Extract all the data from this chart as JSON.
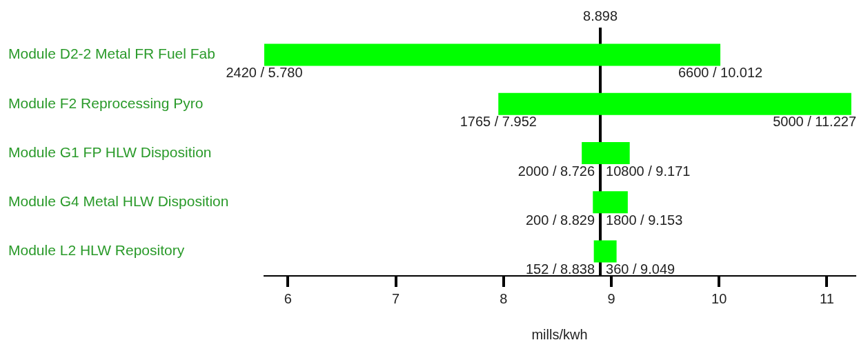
{
  "chart_data": {
    "type": "bar",
    "orientation": "horizontal",
    "xlabel": "mills/kwh",
    "categories": [
      "Module D2-2 Metal FR Fuel Fab",
      "Module F2 Reprocessing Pyro",
      "Module G1 FP HLW Disposition",
      "Module G4 Metal HLW Disposition",
      "Module L2 HLW Repository"
    ],
    "base": [
      5.78,
      7.952,
      8.726,
      8.829,
      8.838
    ],
    "values": [
      4.232,
      3.275,
      0.445,
      0.324,
      0.211
    ],
    "color": "#00ff00",
    "xlim": [
      5.78,
      11.26
    ],
    "xticks": [
      6,
      7,
      8,
      9,
      10,
      11
    ],
    "ref_lines": [
      {
        "axis": "x",
        "value": 8.898,
        "label": "8.898",
        "color": "#000000"
      }
    ],
    "annotations": [
      {
        "text": "2420 / 5.780",
        "x": 5.78,
        "y": "Module D2-2 Metal FR Fuel Fab"
      },
      {
        "text": "6600 / 10.012",
        "x": 10.012,
        "y": "Module D2-2 Metal FR Fuel Fab"
      },
      {
        "text": "1765 / 7.952",
        "x": 7.952,
        "y": "Module F2 Reprocessing Pyro"
      },
      {
        "text": "5000 / 11.227",
        "x": 11.227,
        "y": "Module F2 Reprocessing Pyro"
      },
      {
        "text": "2000 / 8.726",
        "x": 8.726,
        "y": "Module G1 FP HLW Disposition"
      },
      {
        "text": "10800 / 9.171",
        "x": 9.171,
        "y": "Module G1 FP HLW Disposition"
      },
      {
        "text": "200 / 8.829",
        "x": 8.829,
        "y": "Module G4 Metal HLW Disposition"
      },
      {
        "text": "1800 / 9.153",
        "x": 9.153,
        "y": "Module G4 Metal HLW Disposition"
      },
      {
        "text": "152 / 8.838",
        "x": 8.838,
        "y": "Module L2 HLW Repository"
      },
      {
        "text": "360 / 9.049",
        "x": 9.049,
        "y": "Module L2 HLW Repository"
      }
    ],
    "grid": false,
    "legend": false
  }
}
